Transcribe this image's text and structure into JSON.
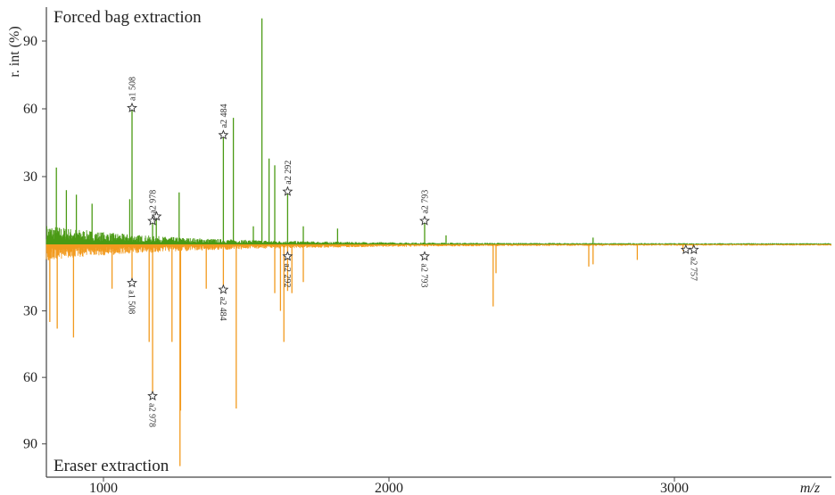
{
  "chart_data": {
    "type": "mirror-spectrum",
    "ylabel": "r. int (%)",
    "xlabel": "m/z",
    "xlim": [
      800,
      3550
    ],
    "x_ticks": [
      1000,
      2000,
      3000
    ],
    "upper": {
      "title": "Forced bag extraction",
      "color": "#4a9a14",
      "ylim": [
        0,
        105
      ],
      "y_ticks": [
        30,
        60,
        90
      ],
      "noise_x": [
        800,
        1700
      ],
      "peaks": [
        {
          "x": 835,
          "y": 34
        },
        {
          "x": 870,
          "y": 24
        },
        {
          "x": 905,
          "y": 22
        },
        {
          "x": 960,
          "y": 18
        },
        {
          "x": 1100,
          "y": 60
        },
        {
          "x": 1092,
          "y": 20
        },
        {
          "x": 1172,
          "y": 10
        },
        {
          "x": 1185,
          "y": 12
        },
        {
          "x": 1265,
          "y": 23
        },
        {
          "x": 1420,
          "y": 48
        },
        {
          "x": 1455,
          "y": 56
        },
        {
          "x": 1525,
          "y": 8
        },
        {
          "x": 1555,
          "y": 100
        },
        {
          "x": 1580,
          "y": 38
        },
        {
          "x": 1600,
          "y": 35
        },
        {
          "x": 1645,
          "y": 23
        },
        {
          "x": 1700,
          "y": 8
        },
        {
          "x": 1820,
          "y": 7
        },
        {
          "x": 2125,
          "y": 10
        },
        {
          "x": 2200,
          "y": 4
        },
        {
          "x": 2715,
          "y": 3
        }
      ],
      "annotations": [
        {
          "label": "a1 508",
          "x": 1100,
          "y": 60
        },
        {
          "label": "a2 978",
          "x": 1172,
          "y": 10
        },
        {
          "label": "",
          "x": 1186,
          "y": 12
        },
        {
          "label": "a2 484",
          "x": 1420,
          "y": 48
        },
        {
          "label": "a2 292",
          "x": 1645,
          "y": 23
        },
        {
          "label": "a2 793",
          "x": 2125,
          "y": 10
        }
      ]
    },
    "lower": {
      "title": "Eraser extraction",
      "color": "#f29a1e",
      "ylim": [
        0,
        105
      ],
      "y_ticks": [
        30,
        60,
        90
      ],
      "noise_x": [
        800,
        1900
      ],
      "peaks": [
        {
          "x": 812,
          "y": 35
        },
        {
          "x": 838,
          "y": 38
        },
        {
          "x": 895,
          "y": 42
        },
        {
          "x": 1030,
          "y": 20
        },
        {
          "x": 1100,
          "y": 17
        },
        {
          "x": 1160,
          "y": 44
        },
        {
          "x": 1172,
          "y": 68
        },
        {
          "x": 1240,
          "y": 44
        },
        {
          "x": 1270,
          "y": 75
        },
        {
          "x": 1268,
          "y": 100
        },
        {
          "x": 1360,
          "y": 20
        },
        {
          "x": 1420,
          "y": 20
        },
        {
          "x": 1465,
          "y": 74
        },
        {
          "x": 1600,
          "y": 22
        },
        {
          "x": 1620,
          "y": 30
        },
        {
          "x": 1632,
          "y": 44
        },
        {
          "x": 1645,
          "y": 21
        },
        {
          "x": 1660,
          "y": 22
        },
        {
          "x": 1700,
          "y": 17
        },
        {
          "x": 2365,
          "y": 28
        },
        {
          "x": 2375,
          "y": 13
        },
        {
          "x": 2700,
          "y": 10
        },
        {
          "x": 2715,
          "y": 9
        },
        {
          "x": 2870,
          "y": 7
        },
        {
          "x": 3030,
          "y": 3
        },
        {
          "x": 3065,
          "y": 2
        }
      ],
      "annotations": [
        {
          "label": "a1 508",
          "x": 1100,
          "y": 17
        },
        {
          "label": "a2 978",
          "x": 1172,
          "y": 68
        },
        {
          "label": "a2 484",
          "x": 1420,
          "y": 20
        },
        {
          "label": "a2 292",
          "x": 1645,
          "y": 5
        },
        {
          "label": "a2 793",
          "x": 2125,
          "y": 5
        },
        {
          "label": "",
          "x": 3040,
          "y": 2
        },
        {
          "label": "a2 757",
          "x": 3068,
          "y": 2
        }
      ]
    }
  }
}
